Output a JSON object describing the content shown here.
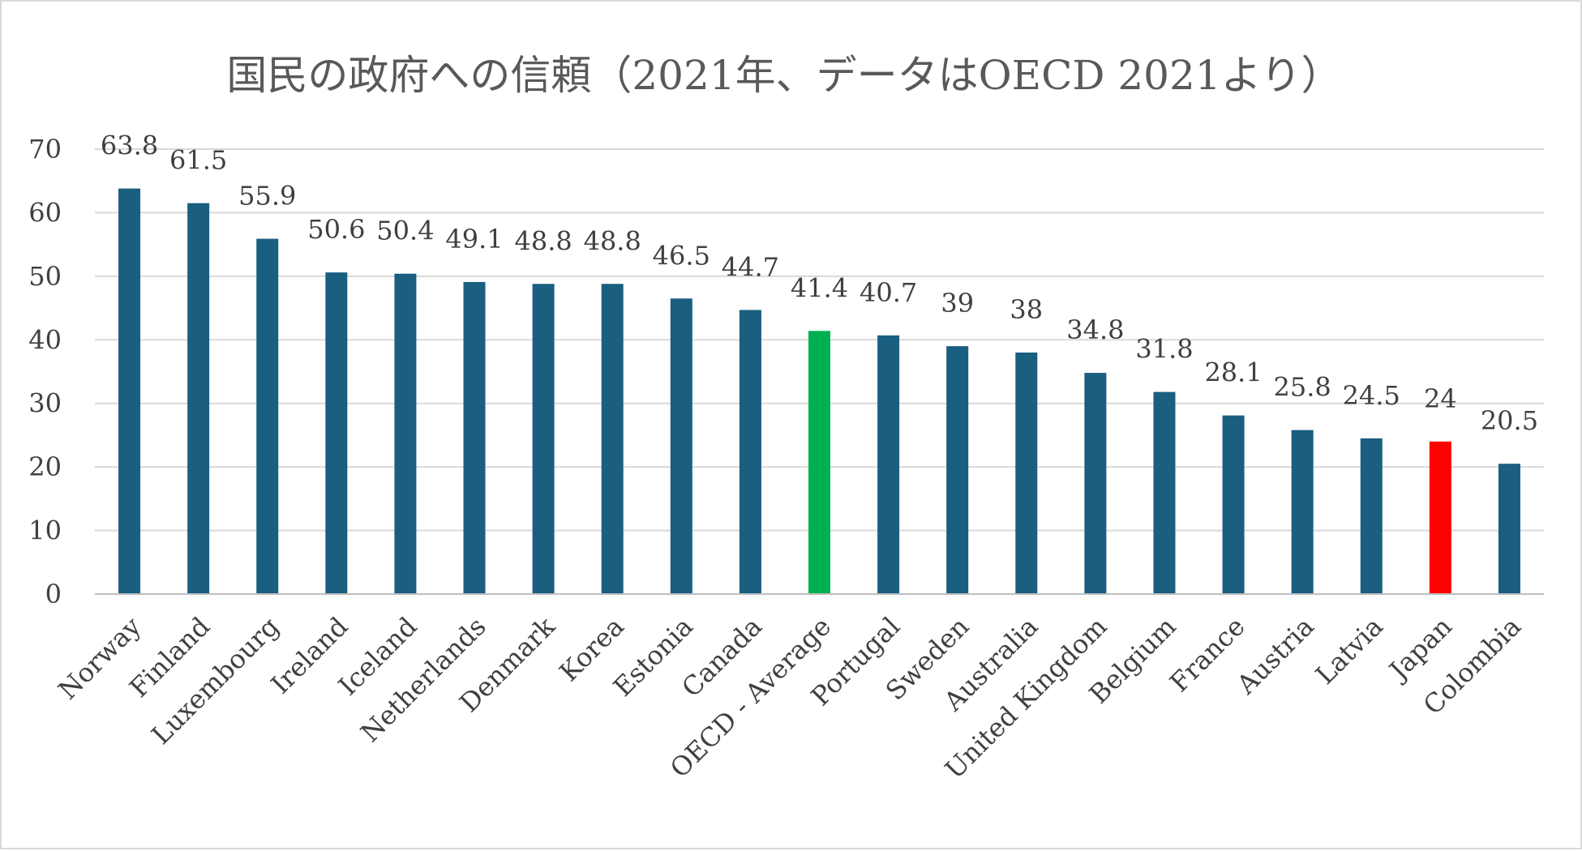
{
  "chart_data": {
    "type": "bar",
    "title": "国民の政府への信頼（2021年、データはOECD 2021より）",
    "xlabel": "",
    "ylabel": "",
    "ylim": [
      0,
      70
    ],
    "yticks": [
      0,
      10,
      20,
      30,
      40,
      50,
      60,
      70
    ],
    "grid": true,
    "legend": "none",
    "categories": [
      "Norway",
      "Finland",
      "Luxembourg",
      "Ireland",
      "Iceland",
      "Netherlands",
      "Denmark",
      "Korea",
      "Estonia",
      "Canada",
      "OECD - Average",
      "Portugal",
      "Sweden",
      "Australia",
      "United Kingdom",
      "Belgium",
      "France",
      "Austria",
      "Latvia",
      "Japan",
      "Colombia"
    ],
    "values": [
      63.8,
      61.5,
      55.9,
      50.6,
      50.4,
      49.1,
      48.8,
      48.8,
      46.5,
      44.7,
      41.4,
      40.7,
      39,
      38,
      34.8,
      31.8,
      28.1,
      25.8,
      24.5,
      24,
      20.5
    ],
    "colors": {
      "default": "#1a5e80",
      "OECD - Average": "#00b050",
      "Japan": "#ff0000"
    }
  }
}
